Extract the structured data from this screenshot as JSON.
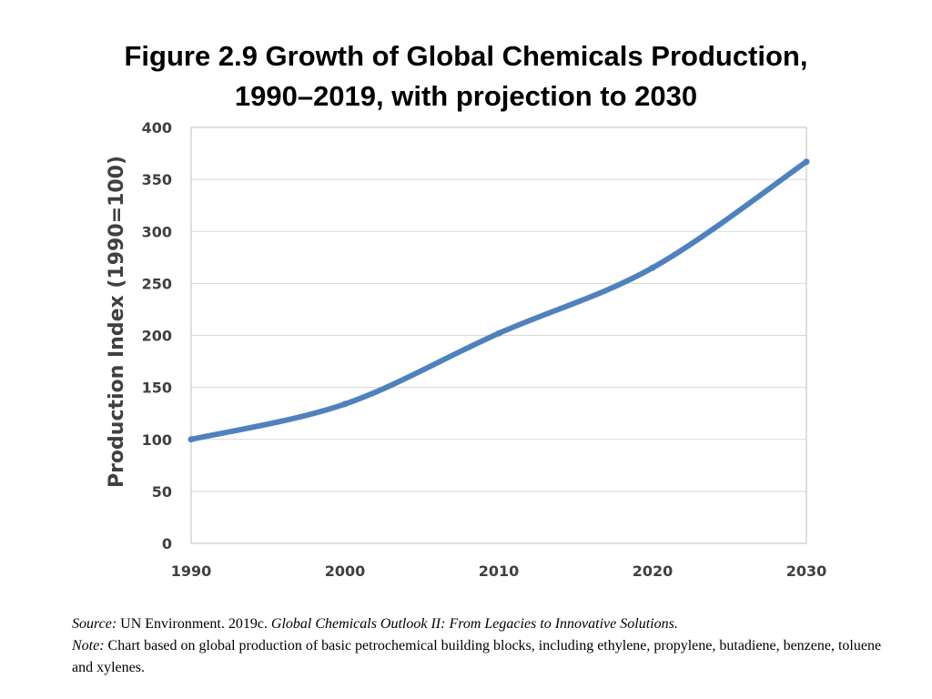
{
  "chart_data": {
    "type": "line",
    "title_line1": "Figure 2.9 Growth of Global Chemicals Production,",
    "title_line2": "1990–2019, with projection to 2030",
    "xlabel": "",
    "ylabel": "Production Index (1990=100)",
    "xlim": [
      1990,
      2030
    ],
    "ylim": [
      0,
      400
    ],
    "x_ticks": [
      1990,
      2000,
      2010,
      2020,
      2030
    ],
    "y_ticks": [
      0,
      50,
      100,
      150,
      200,
      250,
      300,
      350,
      400
    ],
    "grid": "horizontal",
    "legend": "none",
    "series": [
      {
        "name": "Production Index",
        "color": "#4F81BD",
        "x": [
          1990,
          2000,
          2010,
          2020,
          2030
        ],
        "values": [
          100,
          134,
          202,
          265,
          367
        ]
      }
    ]
  },
  "caption": {
    "source_label": "Source:",
    "source_text": " UN Environment. 2019c. ",
    "source_title": "Global Chemicals Outlook II: From Legacies to Innovative Solutions.",
    "note_label": "Note:",
    "note_text": " Chart based on global production of basic petrochemical building blocks, including ethylene, propylene, butadiene, benzene, toluene and xylenes."
  }
}
